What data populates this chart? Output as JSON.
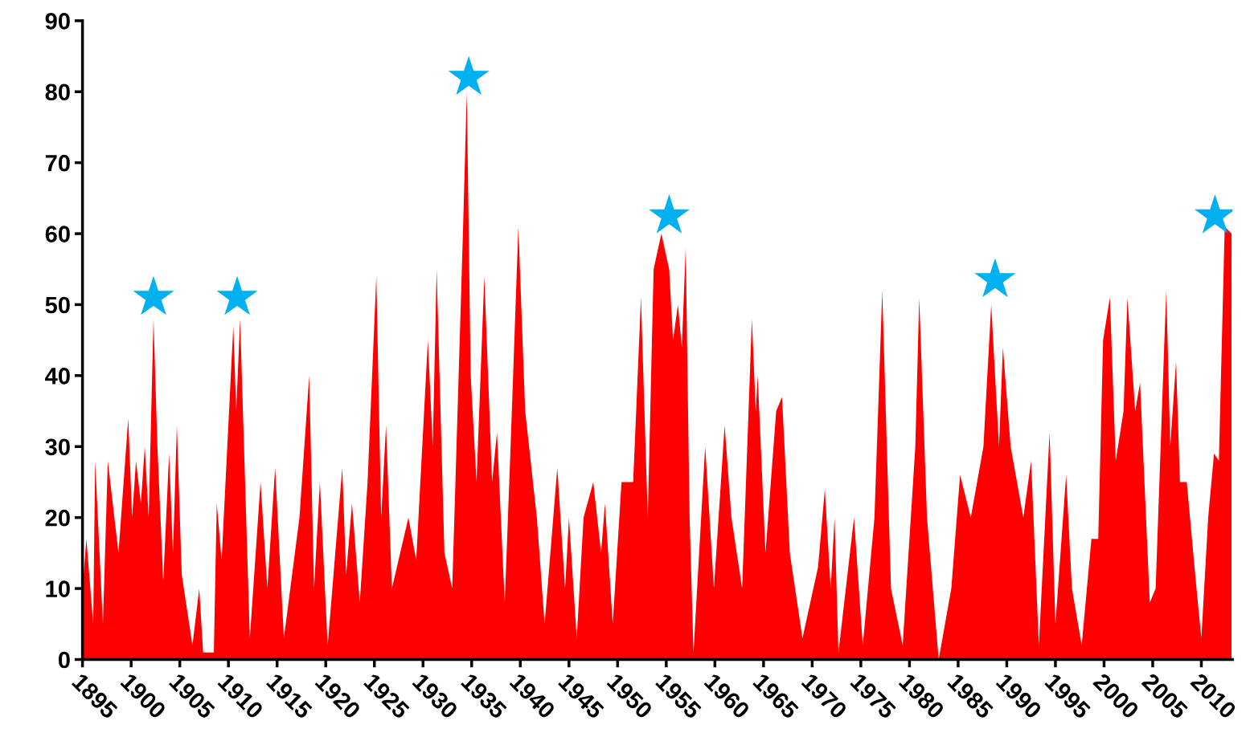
{
  "chart_data": {
    "type": "area",
    "xlim": [
      1895,
      2013.2
    ],
    "ylim": [
      0,
      90
    ],
    "xticks": [
      1895,
      1900,
      1905,
      1910,
      1915,
      1920,
      1925,
      1930,
      1935,
      1940,
      1945,
      1950,
      1955,
      1960,
      1965,
      1970,
      1975,
      1980,
      1985,
      1990,
      1995,
      2000,
      2005,
      2010
    ],
    "yticks": [
      0,
      10,
      20,
      30,
      40,
      50,
      60,
      70,
      80,
      90
    ],
    "grid": false,
    "series": [
      {
        "color": "#ff0000",
        "x": [
          1895.0,
          1895.4,
          1896.1,
          1896.3,
          1897.1,
          1897.6,
          1898.7,
          1899.7,
          1900.1,
          1900.5,
          1901.0,
          1901.4,
          1901.8,
          1902.3,
          1902.7,
          1903.3,
          1903.9,
          1904.3,
          1904.7,
          1905.2,
          1906.3,
          1907.0,
          1907.4,
          1908.5,
          1908.8,
          1909.3,
          1910.5,
          1910.8,
          1911.2,
          1911.6,
          1912.2,
          1913.3,
          1914.0,
          1914.8,
          1915.7,
          1917.3,
          1918.3,
          1918.8,
          1919.4,
          1920.2,
          1921.7,
          1922.1,
          1922.7,
          1923.5,
          1924.3,
          1925.2,
          1925.7,
          1926.2,
          1926.8,
          1928.5,
          1929.3,
          1930.5,
          1931.0,
          1931.4,
          1932.2,
          1933.0,
          1934.1,
          1934.5,
          1934.9,
          1935.5,
          1936.3,
          1937.1,
          1937.6,
          1938.4,
          1939.0,
          1939.8,
          1940.5,
          1941.7,
          1942.5,
          1943.8,
          1944.6,
          1945.0,
          1945.8,
          1946.5,
          1947.5,
          1948.3,
          1948.7,
          1949.5,
          1950.4,
          1951.6,
          1952.4,
          1953.1,
          1953.7,
          1954.5,
          1955.3,
          1955.7,
          1956.2,
          1956.6,
          1957.0,
          1957.4,
          1957.8,
          1959.0,
          1959.9,
          1961.0,
          1961.7,
          1962.8,
          1963.8,
          1964.2,
          1964.4,
          1965.2,
          1966.3,
          1966.9,
          1967.7,
          1969.0,
          1970.6,
          1971.3,
          1971.9,
          1972.3,
          1972.7,
          1974.3,
          1975.2,
          1976.4,
          1977.2,
          1978.1,
          1979.3,
          1980.6,
          1981.0,
          1981.8,
          1983.0,
          1984.3,
          1985.2,
          1986.3,
          1987.6,
          1988.4,
          1989.2,
          1989.6,
          1990.4,
          1991.7,
          1992.5,
          1993.3,
          1994.4,
          1995.0,
          1996.1,
          1996.7,
          1997.7,
          1998.7,
          1999.4,
          1999.9,
          2000.6,
          2001.2,
          2002.0,
          2002.4,
          2003.2,
          2003.7,
          2004.7,
          2005.3,
          2006.2,
          2006.4,
          2006.8,
          2007.4,
          2007.8,
          2008.5,
          2009.5,
          2010.0,
          2010.7,
          2011.3,
          2011.8,
          2012.4,
          2013.1
        ],
        "values": [
          10,
          17,
          5,
          28,
          5,
          28,
          15,
          34,
          20,
          28,
          22,
          30,
          20,
          48,
          30,
          11,
          29,
          15,
          33,
          12,
          2,
          10,
          1,
          1,
          22,
          14,
          47,
          35,
          48,
          30,
          3,
          25,
          10,
          27,
          3,
          20,
          40,
          10,
          25,
          2,
          27,
          12,
          22,
          8,
          25,
          54,
          20,
          33,
          10,
          20,
          14,
          45,
          30,
          55,
          15,
          10,
          60,
          80,
          40,
          25,
          54,
          25,
          32,
          8,
          30,
          61,
          35,
          20,
          5,
          27,
          10,
          20,
          3,
          20,
          25,
          15,
          22,
          5,
          25,
          25,
          51,
          20,
          55,
          60,
          55,
          45,
          50,
          44,
          58,
          20,
          1,
          30,
          10,
          33,
          20,
          10,
          48,
          35,
          40,
          15,
          35,
          37,
          15,
          3,
          13,
          24,
          10,
          20,
          1,
          20,
          2,
          20,
          52,
          10,
          2,
          30,
          51,
          20,
          0,
          10,
          26,
          20,
          30,
          50,
          30,
          44,
          30,
          20,
          28,
          2,
          32,
          5,
          26,
          10,
          2,
          17,
          17,
          45,
          51,
          28,
          35,
          51,
          35,
          39,
          8,
          10,
          45,
          52,
          30,
          42,
          25,
          25,
          10,
          3,
          20,
          29,
          28,
          61,
          60
        ]
      },
      {
        "type": "scatter",
        "color": "#00b0f0",
        "marker": "star",
        "x": [
          1902.3,
          1910.9,
          1934.7,
          1955.3,
          1988.8,
          2011.4
        ],
        "values": [
          51,
          51,
          82,
          62.5,
          53.5,
          62.5
        ]
      }
    ]
  }
}
